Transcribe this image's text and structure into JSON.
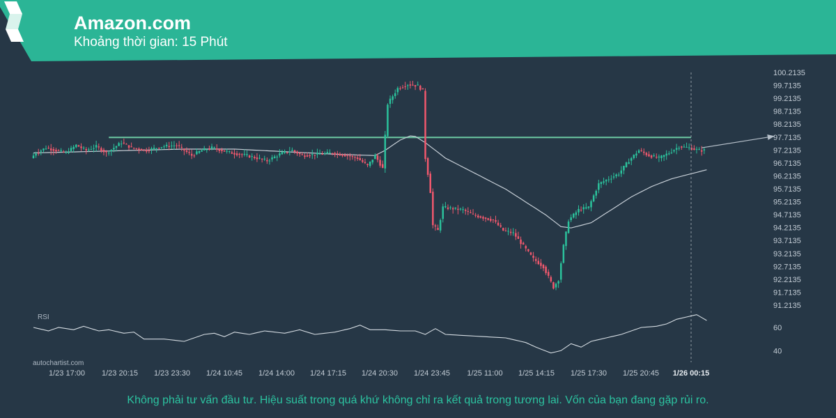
{
  "header": {
    "title": "Amazon.com",
    "subtitle": "Khoảng thời gian: 15 Phút",
    "color": "#2bb596"
  },
  "watermark": "autochartist.com",
  "disclaimer": "Không phải tư vấn đầu tư. Hiệu suất trong quá khứ không chỉ ra kết quả trong tương lai. Vốn của bạn đang gặp rủi ro.",
  "chart_data": {
    "type": "candlestick",
    "instrument": "Amazon.com",
    "interval": "15 Phút",
    "y_ticks": [
      "100.2135",
      "99.7135",
      "99.2135",
      "98.7135",
      "98.2135",
      "97.7135",
      "97.2135",
      "96.7135",
      "96.2135",
      "95.7135",
      "95.2135",
      "94.7135",
      "94.2135",
      "93.7135",
      "93.2135",
      "92.7135",
      "92.2135",
      "91.7135",
      "91.2135"
    ],
    "ylim": [
      91.2135,
      100.2135
    ],
    "x_ticks": [
      "1/23 17:00",
      "1/23 20:15",
      "1/23 23:30",
      "1/24 10:45",
      "1/24 14:00",
      "1/24 17:15",
      "1/24 20:30",
      "1/24 23:45",
      "1/25 11:00",
      "1/25 14:15",
      "1/25 17:30",
      "1/25 20:45",
      "1/26 00:15"
    ],
    "resistance_level": 97.7,
    "price_path": [
      [
        0,
        96.9
      ],
      [
        2,
        97.1
      ],
      [
        6,
        97.3
      ],
      [
        10,
        97.2
      ],
      [
        14,
        97.1
      ],
      [
        18,
        97.4
      ],
      [
        22,
        97.2
      ],
      [
        26,
        97.35
      ],
      [
        30,
        97.1
      ],
      [
        36,
        97.5
      ],
      [
        40,
        97.3
      ],
      [
        46,
        97.2
      ],
      [
        52,
        97.35
      ],
      [
        58,
        97.4
      ],
      [
        64,
        97.0
      ],
      [
        68,
        97.2
      ],
      [
        72,
        97.3
      ],
      [
        80,
        97.1
      ],
      [
        86,
        97.0
      ],
      [
        90,
        96.9
      ],
      [
        94,
        96.8
      ],
      [
        100,
        97.1
      ],
      [
        104,
        97.2
      ],
      [
        108,
        97.0
      ],
      [
        114,
        97.05
      ],
      [
        120,
        97.1
      ],
      [
        126,
        97.0
      ],
      [
        130,
        96.9
      ],
      [
        134,
        96.6
      ],
      [
        137,
        97.0
      ],
      [
        140,
        96.5
      ],
      [
        142,
        99.0
      ],
      [
        146,
        99.6
      ],
      [
        150,
        99.75
      ],
      [
        154,
        99.7
      ],
      [
        156,
        99.5
      ],
      [
        157,
        96.9
      ],
      [
        158,
        96.3
      ],
      [
        159,
        95.6
      ],
      [
        160,
        94.3
      ],
      [
        162,
        94.1
      ],
      [
        164,
        95.0
      ],
      [
        168,
        94.95
      ],
      [
        172,
        94.9
      ],
      [
        176,
        94.7
      ],
      [
        180,
        94.6
      ],
      [
        184,
        94.5
      ],
      [
        188,
        94.1
      ],
      [
        192,
        94.0
      ],
      [
        196,
        93.5
      ],
      [
        200,
        93.0
      ],
      [
        204,
        92.7
      ],
      [
        206,
        92.3
      ],
      [
        208,
        91.9
      ],
      [
        210,
        92.2
      ],
      [
        212,
        93.5
      ],
      [
        214,
        94.5
      ],
      [
        218,
        94.9
      ],
      [
        222,
        95.0
      ],
      [
        226,
        95.9
      ],
      [
        230,
        96.1
      ],
      [
        234,
        96.3
      ],
      [
        238,
        96.8
      ],
      [
        242,
        97.2
      ],
      [
        246,
        97.0
      ],
      [
        250,
        96.9
      ],
      [
        254,
        97.1
      ],
      [
        258,
        97.35
      ],
      [
        262,
        97.3
      ],
      [
        266,
        97.2
      ]
    ],
    "moving_average_path": [
      [
        0,
        97.1
      ],
      [
        20,
        97.15
      ],
      [
        40,
        97.2
      ],
      [
        60,
        97.25
      ],
      [
        80,
        97.25
      ],
      [
        100,
        97.15
      ],
      [
        120,
        97.05
      ],
      [
        136,
        97.0
      ],
      [
        140,
        97.2
      ],
      [
        146,
        97.6
      ],
      [
        151,
        97.8
      ],
      [
        156,
        97.5
      ],
      [
        164,
        96.9
      ],
      [
        172,
        96.5
      ],
      [
        180,
        96.1
      ],
      [
        188,
        95.7
      ],
      [
        196,
        95.2
      ],
      [
        204,
        94.7
      ],
      [
        210,
        94.25
      ],
      [
        214,
        94.2
      ],
      [
        222,
        94.4
      ],
      [
        230,
        94.9
      ],
      [
        238,
        95.4
      ],
      [
        246,
        95.8
      ],
      [
        254,
        96.1
      ],
      [
        262,
        96.3
      ],
      [
        268,
        96.45
      ]
    ],
    "forecast_path": [
      [
        266,
        97.3
      ],
      [
        295,
        97.75
      ]
    ],
    "rsi": {
      "label": "RSI",
      "y_ticks": [
        "60",
        "40"
      ],
      "ylim": [
        30,
        75
      ],
      "path": [
        [
          0,
          60
        ],
        [
          6,
          57
        ],
        [
          10,
          60
        ],
        [
          16,
          58
        ],
        [
          20,
          61
        ],
        [
          26,
          57
        ],
        [
          30,
          58
        ],
        [
          36,
          55
        ],
        [
          40,
          56
        ],
        [
          44,
          50
        ],
        [
          52,
          50
        ],
        [
          60,
          48
        ],
        [
          68,
          54
        ],
        [
          72,
          55
        ],
        [
          76,
          52
        ],
        [
          80,
          56
        ],
        [
          86,
          54
        ],
        [
          92,
          57
        ],
        [
          100,
          55
        ],
        [
          106,
          58
        ],
        [
          112,
          54
        ],
        [
          120,
          56
        ],
        [
          126,
          59
        ],
        [
          130,
          62
        ],
        [
          134,
          58
        ],
        [
          140,
          58
        ],
        [
          146,
          57
        ],
        [
          152,
          57
        ],
        [
          156,
          54
        ],
        [
          160,
          59
        ],
        [
          164,
          54
        ],
        [
          172,
          53
        ],
        [
          180,
          52
        ],
        [
          188,
          51
        ],
        [
          196,
          47
        ],
        [
          200,
          43
        ],
        [
          206,
          38
        ],
        [
          210,
          40
        ],
        [
          214,
          46
        ],
        [
          218,
          43
        ],
        [
          222,
          48
        ],
        [
          226,
          50
        ],
        [
          230,
          52
        ],
        [
          234,
          54
        ],
        [
          238,
          57
        ],
        [
          242,
          60
        ],
        [
          248,
          61
        ],
        [
          252,
          63
        ],
        [
          256,
          67
        ],
        [
          260,
          69
        ],
        [
          264,
          71
        ],
        [
          268,
          66
        ]
      ]
    }
  }
}
